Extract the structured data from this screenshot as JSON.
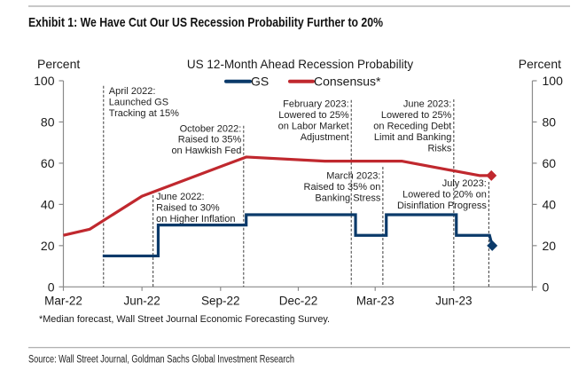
{
  "exhibit": {
    "title": "Exhibit 1: We Have Cut Our US Recession Probability Further to 20%"
  },
  "footnote": "*Median forecast, Wall Street Journal Economic Forecasting Survey.",
  "source": "Source: Wall Street Journal, Goldman Sachs Global Investment Research",
  "colors": {
    "gs": "#0b3a6a",
    "consensus": "#c0282e",
    "axis": "#8a8a8a",
    "rule": "#a6a6a6",
    "annotation_line": "#3a3a3a"
  },
  "chart_data": {
    "type": "line",
    "title": "US 12-Month Ahead Recession Probability",
    "xlabel": "",
    "ylabel_left": "Percent",
    "ylabel_right": "Percent",
    "ylim": [
      0,
      100
    ],
    "yticks": [
      0,
      20,
      40,
      60,
      80,
      100
    ],
    "xlim": [
      "2022-03-01",
      "2023-09-01"
    ],
    "xticks": [
      {
        "date": "2022-03-01",
        "label": "Mar-22"
      },
      {
        "date": "2022-06-01",
        "label": "Jun-22"
      },
      {
        "date": "2022-09-01",
        "label": "Sep-22"
      },
      {
        "date": "2022-12-01",
        "label": "Dec-22"
      },
      {
        "date": "2023-03-01",
        "label": "Mar-23"
      },
      {
        "date": "2023-06-01",
        "label": "Jun-23"
      },
      {
        "date": "2023-09-01",
        "label": ""
      }
    ],
    "grid": false,
    "legend": {
      "placement": "top-center",
      "entries": [
        {
          "name": "GS",
          "color": "#0b3a6a"
        },
        {
          "name": "Consensus*",
          "color": "#c0282e"
        }
      ]
    },
    "series": [
      {
        "name": "GS",
        "style": "step",
        "color": "#0b3a6a",
        "end_marker": "diamond",
        "points": [
          {
            "date": "2022-04-16",
            "value": 15
          },
          {
            "date": "2022-06-20",
            "value": 30
          },
          {
            "date": "2022-10-01",
            "value": 35
          },
          {
            "date": "2023-02-06",
            "value": 25
          },
          {
            "date": "2023-03-14",
            "value": 35
          },
          {
            "date": "2023-06-04",
            "value": 25
          },
          {
            "date": "2023-07-16",
            "value": 20
          }
        ]
      },
      {
        "name": "Consensus*",
        "style": "line",
        "color": "#c0282e",
        "end_marker": "diamond",
        "points": [
          {
            "date": "2022-03-01",
            "value": 25
          },
          {
            "date": "2022-04-01",
            "value": 28
          },
          {
            "date": "2022-06-01",
            "value": 44
          },
          {
            "date": "2022-10-01",
            "value": 63
          },
          {
            "date": "2023-01-01",
            "value": 61
          },
          {
            "date": "2023-04-01",
            "value": 61
          },
          {
            "date": "2023-07-01",
            "value": 54
          },
          {
            "date": "2023-07-15",
            "value": 54
          }
        ]
      }
    ],
    "annotations": [
      {
        "date": "2022-04-17",
        "lines": [
          "April 2022:",
          "Launched GS",
          "Tracking at 15%"
        ]
      },
      {
        "date": "2022-06-14",
        "lines": [
          "June 2022:",
          "Raised to 30%",
          "on Higher Inflation"
        ]
      },
      {
        "date": "2022-09-28",
        "lines": [
          "October 2022:",
          "Raised to 35%",
          "on Hawkish Fed"
        ]
      },
      {
        "date": "2023-02-01",
        "lines": [
          "February 2023:",
          "Lowered to 25%",
          "on Labor Market",
          "Adjustment"
        ]
      },
      {
        "date": "2023-03-10",
        "lines": [
          "March 2023:",
          "Raised to 35% on",
          "Banking Stress"
        ]
      },
      {
        "date": "2023-06-01",
        "lines": [
          "June 2023:",
          "Lowered to 25%",
          "on Receding Debt",
          "Limit and Banking",
          "Risks"
        ]
      },
      {
        "date": "2023-07-12",
        "lines": [
          "July 2023:",
          "Lowered to 20% on",
          "Disinflation Progress"
        ]
      }
    ]
  }
}
